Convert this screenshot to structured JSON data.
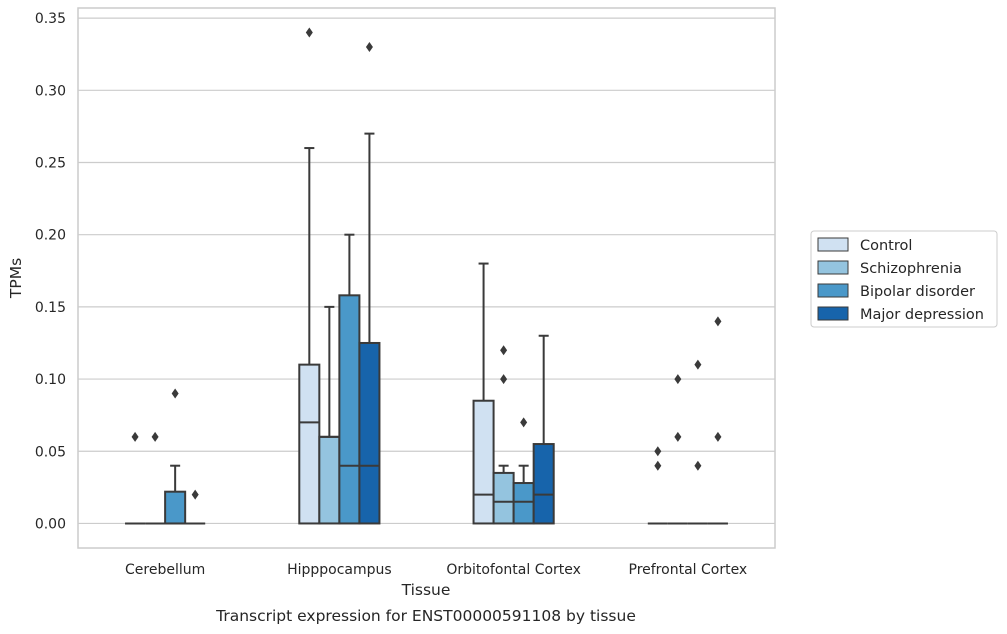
{
  "caption": "Transcript expression for ENST00000591108 by tissue",
  "chart_data": {
    "type": "box",
    "xlabel": "Tissue",
    "ylabel": "TPMs",
    "ylim": [
      -0.017,
      0.357
    ],
    "yticks": [
      0.0,
      0.05,
      0.1,
      0.15,
      0.2,
      0.25,
      0.3,
      0.35
    ],
    "ytick_labels": [
      "0.00",
      "0.05",
      "0.10",
      "0.15",
      "0.20",
      "0.25",
      "0.30",
      "0.35"
    ],
    "grid": "horizontal",
    "legend_position": "right",
    "categories": [
      "Cerebellum",
      "Hipppocampus",
      "Orbitofontal Cortex",
      "Prefrontal Cortex"
    ],
    "series": [
      {
        "name": "Control",
        "color": "#d0e1f2",
        "boxes": [
          {
            "q1": 0,
            "median": 0,
            "q3": 0,
            "whisker_low": 0,
            "whisker_high": 0,
            "outliers": [
              0.06
            ]
          },
          {
            "q1": 0,
            "median": 0.07,
            "q3": 0.11,
            "whisker_low": 0,
            "whisker_high": 0.26,
            "outliers": [
              0.34
            ]
          },
          {
            "q1": 0,
            "median": 0.02,
            "q3": 0.085,
            "whisker_low": 0,
            "whisker_high": 0.18,
            "outliers": []
          },
          {
            "q1": 0,
            "median": 0,
            "q3": 0,
            "whisker_low": 0,
            "whisker_high": 0,
            "outliers": [
              0.04,
              0.05
            ]
          }
        ]
      },
      {
        "name": "Schizophrenia",
        "color": "#94c4df",
        "boxes": [
          {
            "q1": 0,
            "median": 0,
            "q3": 0,
            "whisker_low": 0,
            "whisker_high": 0,
            "outliers": [
              0.06
            ]
          },
          {
            "q1": 0,
            "median": 0.06,
            "q3": 0.06,
            "whisker_low": 0,
            "whisker_high": 0.15,
            "outliers": []
          },
          {
            "q1": 0,
            "median": 0.015,
            "q3": 0.035,
            "whisker_low": 0,
            "whisker_high": 0.04,
            "outliers": [
              0.1,
              0.12
            ]
          },
          {
            "q1": 0,
            "median": 0,
            "q3": 0,
            "whisker_low": 0,
            "whisker_high": 0,
            "outliers": [
              0.06,
              0.1
            ]
          }
        ]
      },
      {
        "name": "Bipolar disorder",
        "color": "#4a98c9",
        "boxes": [
          {
            "q1": 0,
            "median": 0,
            "q3": 0.022,
            "whisker_low": 0,
            "whisker_high": 0.04,
            "outliers": [
              0.09
            ]
          },
          {
            "q1": 0,
            "median": 0.04,
            "q3": 0.158,
            "whisker_low": 0,
            "whisker_high": 0.2,
            "outliers": []
          },
          {
            "q1": 0,
            "median": 0.015,
            "q3": 0.028,
            "whisker_low": 0,
            "whisker_high": 0.04,
            "outliers": [
              0.07
            ]
          },
          {
            "q1": 0,
            "median": 0,
            "q3": 0,
            "whisker_low": 0,
            "whisker_high": 0,
            "outliers": [
              0.04,
              0.11
            ]
          }
        ]
      },
      {
        "name": "Major depression",
        "color": "#1764ab",
        "boxes": [
          {
            "q1": 0,
            "median": 0,
            "q3": 0,
            "whisker_low": 0,
            "whisker_high": 0,
            "outliers": [
              0.02
            ]
          },
          {
            "q1": 0,
            "median": 0.04,
            "q3": 0.125,
            "whisker_low": 0,
            "whisker_high": 0.27,
            "outliers": [
              0.33
            ]
          },
          {
            "q1": 0,
            "median": 0.02,
            "q3": 0.055,
            "whisker_low": 0,
            "whisker_high": 0.13,
            "outliers": []
          },
          {
            "q1": 0,
            "median": 0,
            "q3": 0,
            "whisker_low": 0,
            "whisker_high": 0,
            "outliers": [
              0.06,
              0.14
            ]
          }
        ]
      }
    ]
  }
}
